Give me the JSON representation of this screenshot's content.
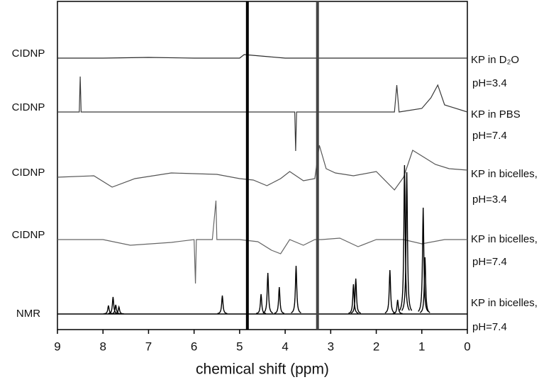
{
  "chart_data": {
    "type": "line",
    "xlabel": "chemical shift (ppm)",
    "xlim": [
      9,
      0
    ],
    "xticks": [
      9,
      8,
      7,
      6,
      5,
      4,
      3,
      2,
      1,
      0
    ],
    "solvent_lines": [
      4.83,
      3.29
    ],
    "series": [
      {
        "kind": "trace",
        "left_label": "CIDNP",
        "name": "KP in D₂O",
        "condition": "pH=3.4",
        "color": "#2b2b2b",
        "x": [
          9,
          8,
          7,
          6,
          5,
          4.9,
          4,
          3,
          2,
          1,
          0
        ],
        "values": [
          0,
          0,
          1,
          0,
          0,
          5,
          0,
          0,
          0,
          0,
          0
        ]
      },
      {
        "kind": "trace",
        "left_label": "CIDNP",
        "name": "KP in PBS",
        "condition": "pH=7.4",
        "color": "#3a3a3a",
        "x": [
          9,
          8.52,
          8.5,
          8.48,
          7,
          6,
          5,
          4,
          3.79,
          3.77,
          3.75,
          3,
          1.6,
          1.55,
          1.5,
          1,
          0.8,
          0.65,
          0.5,
          0
        ],
        "values": [
          0,
          0,
          50,
          0,
          0,
          0,
          0,
          0,
          0,
          -55,
          0,
          0,
          0,
          38,
          0,
          5,
          20,
          38,
          10,
          0
        ]
      },
      {
        "kind": "trace",
        "left_label": "CIDNP",
        "name": "KP in bicelles,",
        "condition": "pH=3.4",
        "color": "#555555",
        "x": [
          9,
          8.2,
          7.8,
          7.3,
          6.5,
          5.5,
          5,
          4.7,
          4.4,
          4.1,
          3.9,
          3.6,
          3.35,
          3.25,
          3.1,
          2.9,
          2.5,
          2.0,
          1.6,
          1.4,
          1.2,
          1.0,
          0.7,
          0.4,
          0
        ],
        "values": [
          0,
          2,
          -14,
          -2,
          6,
          4,
          -2,
          -4,
          -12,
          -2,
          8,
          -5,
          -2,
          45,
          12,
          6,
          2,
          8,
          -18,
          0,
          38,
          30,
          18,
          12,
          10
        ]
      },
      {
        "kind": "trace",
        "left_label": "CIDNP",
        "name": "KP in bicelles,",
        "condition": "pH=7.4",
        "color": "#666666",
        "x": [
          9,
          8,
          7.4,
          6.5,
          6,
          5.97,
          5.95,
          5.6,
          5.52,
          5.5,
          5,
          4.6,
          4.3,
          4.1,
          3.9,
          3.6,
          3.35,
          3.2,
          2.8,
          2.4,
          2.0,
          1.4,
          1.0,
          0.5,
          0
        ],
        "values": [
          0,
          0,
          -8,
          -4,
          0,
          -62,
          0,
          0,
          55,
          0,
          0,
          -3,
          -15,
          -20,
          0,
          -8,
          0,
          0,
          2,
          -10,
          0,
          0,
          -6,
          0,
          0
        ]
      },
      {
        "kind": "peaks",
        "left_label": "NMR",
        "name": "KP in bicelles,",
        "condition": "pH=7.4",
        "color": "#000000",
        "x": [
          7.88,
          7.78,
          7.72,
          7.65,
          5.38,
          4.53,
          4.38,
          4.13,
          3.76,
          2.5,
          2.45,
          1.7,
          1.53,
          1.38,
          1.33,
          0.97,
          0.93
        ],
        "values": [
          12,
          24,
          13,
          10,
          26,
          28,
          58,
          38,
          68,
          42,
          50,
          62,
          20,
          210,
          200,
          150,
          80
        ]
      }
    ]
  }
}
